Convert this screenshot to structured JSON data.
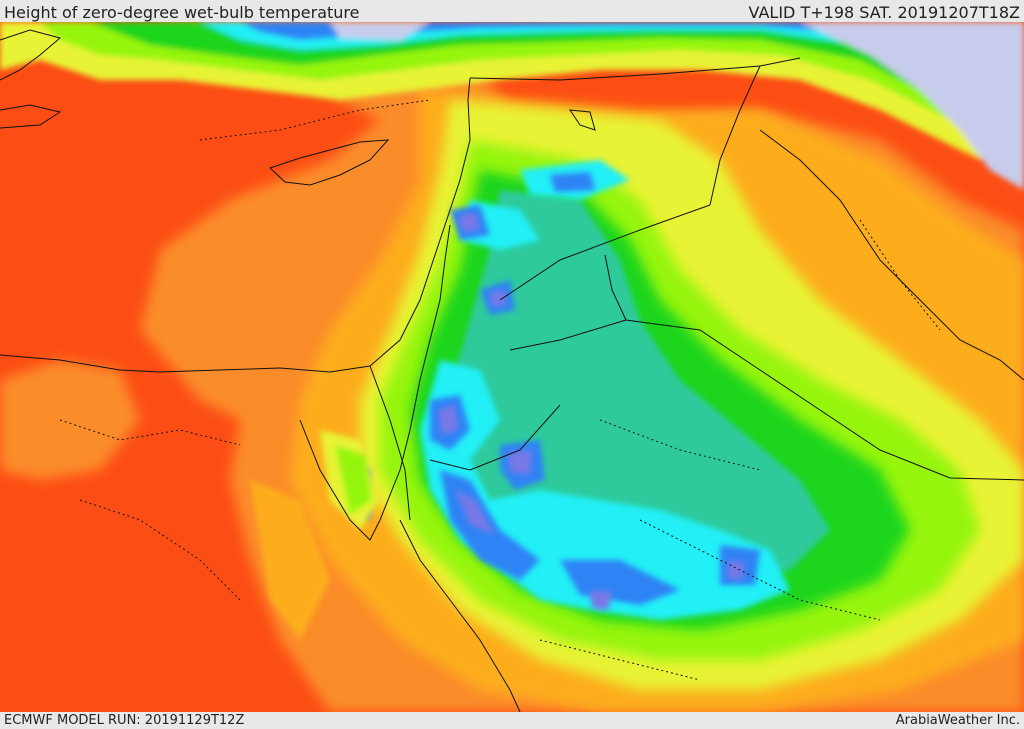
{
  "header": {
    "title": "Height of zero-degree wet-bulb temperature",
    "valid": "VALID T+198 SAT. 20191207T18Z"
  },
  "footer": {
    "model_run": "ECMWF MODEL RUN: 20191129T12Z",
    "credit": "ArabiaWeather Inc."
  },
  "colors": {
    "background": "#fc4e14",
    "orange": "#fb8c2c",
    "amber": "#fdad1e",
    "yellow": "#e8f334",
    "light_green": "#96f50c",
    "green": "#1ed51e",
    "teal": "#2dca9c",
    "cyan": "#24eff6",
    "blue": "#2d83f5",
    "violet": "#7878e6",
    "lavender": "#c8ccec",
    "sea_pale": "#bcdcf2",
    "border_line": "#111111"
  }
}
